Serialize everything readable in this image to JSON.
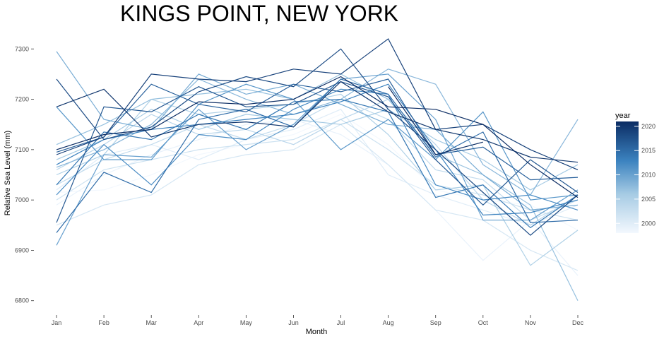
{
  "chart_data": {
    "type": "line",
    "title": "KINGS POINT, NEW YORK",
    "xlabel": "Month",
    "ylabel": "Relative Sea Level (mm)",
    "categories": [
      "Jan",
      "Feb",
      "Mar",
      "Apr",
      "May",
      "Jun",
      "Jul",
      "Aug",
      "Sep",
      "Oct",
      "Nov",
      "Dec"
    ],
    "ylim": [
      6780,
      7320
    ],
    "yticks": [
      6800,
      6900,
      7000,
      7100,
      7200,
      7300
    ],
    "ytick_labels": [
      "6800",
      "6900",
      "7000",
      "7100",
      "7200",
      "7300"
    ],
    "grid": false,
    "legend": {
      "title": "year",
      "position": "right",
      "type": "colorbar",
      "range": [
        1998,
        2021
      ],
      "ticks": [
        2000,
        2005,
        2010,
        2015,
        2020
      ],
      "tick_labels": [
        "2000",
        "2005",
        "2010",
        "2015",
        "2020"
      ],
      "color_low": "#f3f8fe",
      "color_high": "#0b2c63"
    },
    "series": [
      {
        "year": 1998,
        "values": [
          7015,
          7020,
          7050,
          7090,
          7110,
          7130,
          7170,
          7110,
          7020,
          7000,
          6990,
          6940
        ]
      },
      {
        "year": 1999,
        "values": [
          6990,
          7050,
          7090,
          7120,
          7150,
          7160,
          7130,
          7070,
          6980,
          6880,
          6960,
          6850
        ]
      },
      {
        "year": 2000,
        "values": [
          7020,
          7090,
          7110,
          7080,
          7120,
          7140,
          7180,
          7050,
          7010,
          6980,
          6950,
          6990
        ]
      },
      {
        "year": 2001,
        "values": [
          6950,
          6990,
          7010,
          7070,
          7090,
          7100,
          7150,
          7070,
          6980,
          6960,
          6900,
          6860
        ]
      },
      {
        "year": 2002,
        "values": [
          7000,
          7060,
          7080,
          7100,
          7110,
          7120,
          7160,
          7100,
          7030,
          7010,
          6980,
          6960
        ]
      },
      {
        "year": 2003,
        "values": [
          7030,
          7080,
          7110,
          7150,
          7120,
          7150,
          7200,
          7160,
          7060,
          7040,
          6960,
          7000
        ]
      },
      {
        "year": 2004,
        "values": [
          7060,
          7110,
          7170,
          7130,
          7140,
          7110,
          7160,
          7200,
          7110,
          7000,
          6950,
          7010
        ]
      },
      {
        "year": 2005,
        "values": [
          7050,
          7090,
          7200,
          7170,
          7180,
          7190,
          7210,
          7130,
          7020,
          7030,
          6870,
          6940
        ]
      },
      {
        "year": 2006,
        "values": [
          7080,
          7120,
          7180,
          7140,
          7170,
          7160,
          7150,
          7180,
          7120,
          7080,
          7020,
          7070
        ]
      },
      {
        "year": 2007,
        "values": [
          7110,
          7150,
          7200,
          7210,
          7220,
          7200,
          7250,
          7200,
          7090,
          7050,
          6990,
          6800
        ]
      },
      {
        "year": 2008,
        "values": [
          7065,
          7100,
          7150,
          7240,
          7200,
          7170,
          7200,
          7260,
          7230,
          7070,
          7010,
          7160
        ]
      },
      {
        "year": 2009,
        "values": [
          7295,
          7160,
          7140,
          7250,
          7210,
          7230,
          7190,
          7150,
          7140,
          7050,
          6980,
          6990
        ]
      },
      {
        "year": 2010,
        "values": [
          6910,
          7090,
          7085,
          7180,
          7100,
          7150,
          7240,
          7250,
          7160,
          6960,
          6960,
          7020
        ]
      },
      {
        "year": 2011,
        "values": [
          7185,
          7080,
          7080,
          7190,
          7230,
          7200,
          7100,
          7160,
          7080,
          7175,
          7000,
          7010
        ]
      },
      {
        "year": 2012,
        "values": [
          7010,
          7110,
          7030,
          7130,
          7120,
          7180,
          7220,
          7210,
          7030,
          7000,
          7010,
          6980
        ]
      },
      {
        "year": 2013,
        "values": [
          7070,
          7120,
          7140,
          7150,
          7160,
          7170,
          7195,
          7230,
          7100,
          6970,
          6975,
          7000
        ]
      },
      {
        "year": 2014,
        "values": [
          7030,
          7135,
          7120,
          7170,
          7140,
          7195,
          7200,
          7175,
          7005,
          7030,
          6945,
          7010
        ]
      },
      {
        "year": 2015,
        "values": [
          6935,
          7055,
          7015,
          7160,
          7180,
          7145,
          7240,
          7210,
          7085,
          7135,
          6955,
          6960
        ]
      },
      {
        "year": 2016,
        "values": [
          7095,
          7125,
          7230,
          7190,
          7175,
          7230,
          7215,
          7240,
          7090,
          7105,
          7040,
          7045
        ]
      },
      {
        "year": 2017,
        "values": [
          6955,
          7185,
          7175,
          7225,
          7185,
          7190,
          7235,
          7205,
          7080,
          6990,
          7080,
          7015
        ]
      },
      {
        "year": 2018,
        "values": [
          7240,
          7120,
          7145,
          7215,
          7245,
          7225,
          7300,
          7180,
          7100,
          7015,
          6930,
          7010
        ]
      },
      {
        "year": 2019,
        "values": [
          7090,
          7125,
          7250,
          7240,
          7235,
          7260,
          7250,
          7320,
          7140,
          7150,
          7100,
          7060
        ]
      },
      {
        "year": 2020,
        "values": [
          7185,
          7220,
          7125,
          7150,
          7155,
          7145,
          7235,
          7175,
          7140,
          7120,
          7085,
          7075
        ]
      },
      {
        "year": 2021,
        "values": [
          7100,
          7130,
          7140,
          7195,
          7190,
          7200,
          7245,
          7185,
          7180,
          7150,
          7070,
          7005
        ]
      },
      {
        "year": 2022,
        "values": [
          null,
          null,
          null,
          null,
          null,
          null,
          null,
          7225,
          7090,
          7115,
          null,
          null
        ]
      }
    ]
  }
}
